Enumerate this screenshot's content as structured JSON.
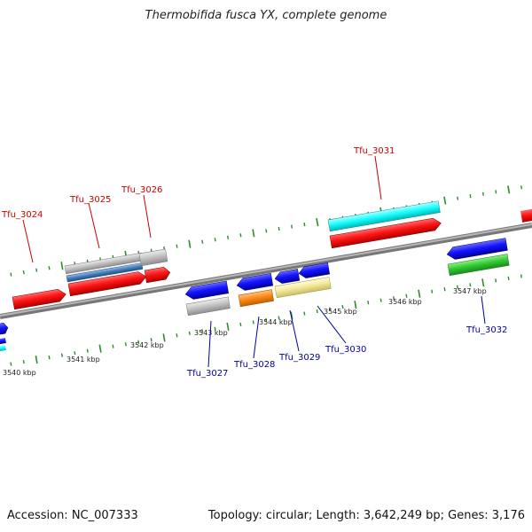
{
  "title": "Thermobifida fusca YX, complete genome",
  "footer": {
    "accession": "Accession: NC_007333",
    "summary": "Topology: circular; Length: 3,642,249 bp; Genes: 3,176"
  },
  "scale_labels": [
    "3540 kbp",
    "3541 kbp",
    "3542 kbp",
    "3543 kbp",
    "3544 kbp",
    "3545 kbp",
    "3546 kbp",
    "3547 kbp"
  ],
  "genes_top": [
    "Tfu_3024",
    "Tfu_3025",
    "Tfu_3026",
    "Tfu_3031"
  ],
  "genes_bottom": [
    "Tfu_3027",
    "Tfu_3028",
    "Tfu_3029",
    "Tfu_3030",
    "Tfu_3032"
  ],
  "colors": {
    "forward_label": "#cc0000",
    "reverse_label": "#0000aa",
    "backbone": "#8a8a8a",
    "tick": "#2e8b2e",
    "red": "#ff1a1a",
    "blue": "#1a1aff",
    "cyan": "#19ffff",
    "green": "#33cc33",
    "grey": "#c4c4c4",
    "orange": "#ff8c1a",
    "khaki": "#f7eea4",
    "steelblue": "#4a82c0"
  }
}
